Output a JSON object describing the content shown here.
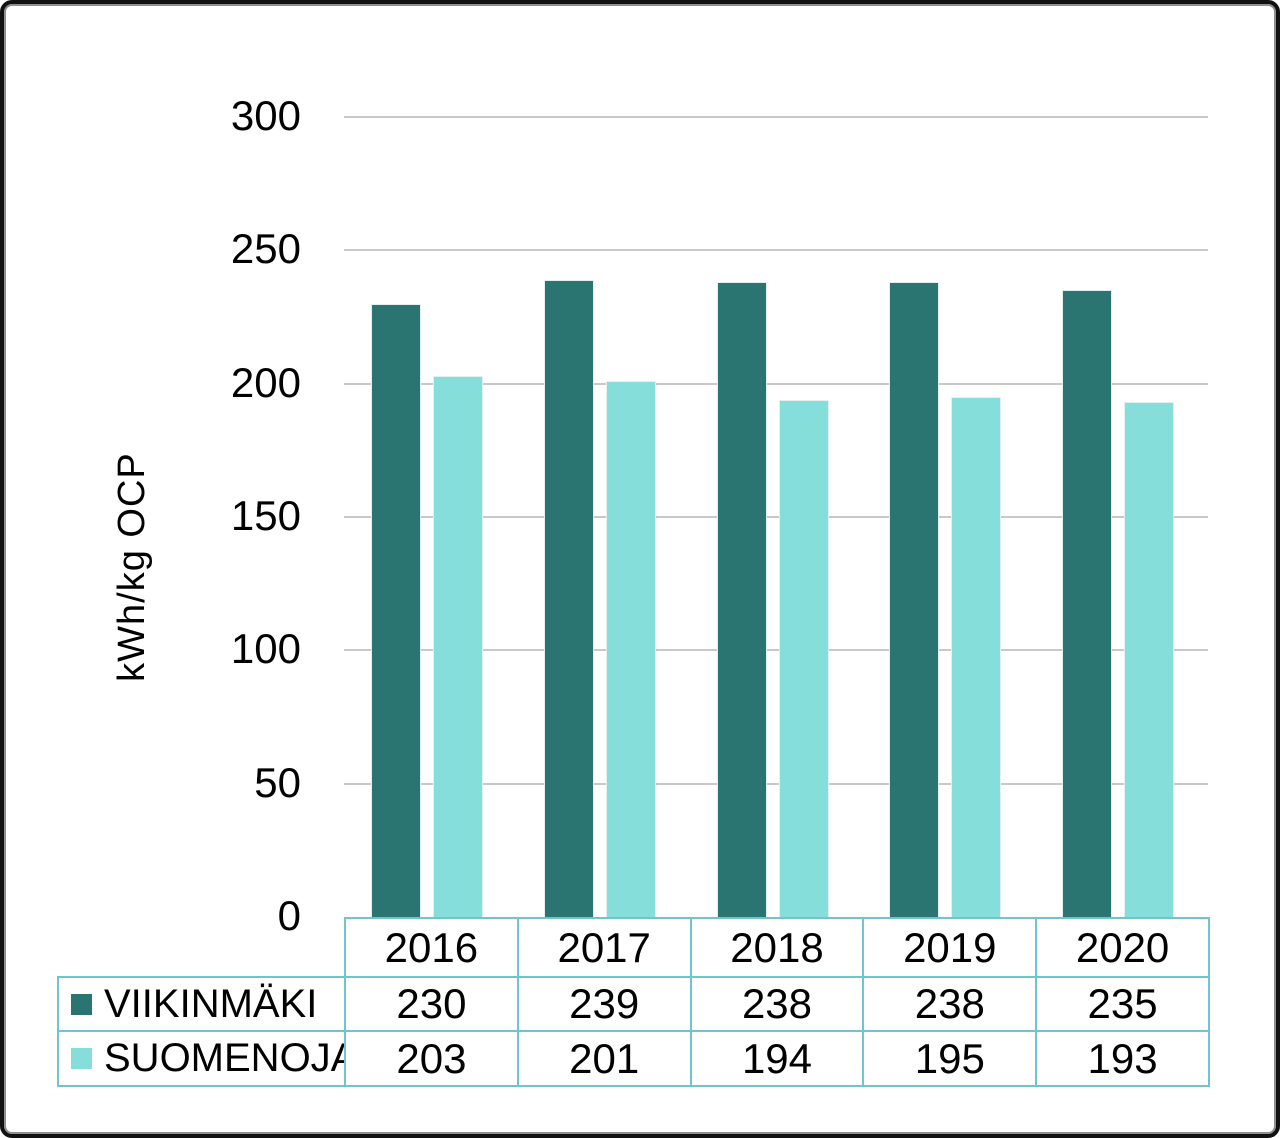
{
  "chart_data": {
    "type": "bar",
    "title": "",
    "ylabel": "kWh/kg OCP",
    "xlabel": "",
    "categories": [
      "2016",
      "2017",
      "2018",
      "2019",
      "2020"
    ],
    "series": [
      {
        "name": "VIIKINMÄKI",
        "color": "#2A7572",
        "values": [
          230,
          239,
          238,
          238,
          235
        ]
      },
      {
        "name": "SUOMENOJA",
        "color": "#85DED9",
        "values": [
          203,
          201,
          194,
          195,
          193
        ]
      }
    ],
    "ylim": [
      0,
      300
    ],
    "ytick_step": 50,
    "grid": true,
    "gridline_color": "#C9C9C9",
    "legend_position": "table-left",
    "table_border_color": "#6EC6CC",
    "text_color": "#000000",
    "background_color": "#FFFFFF"
  }
}
